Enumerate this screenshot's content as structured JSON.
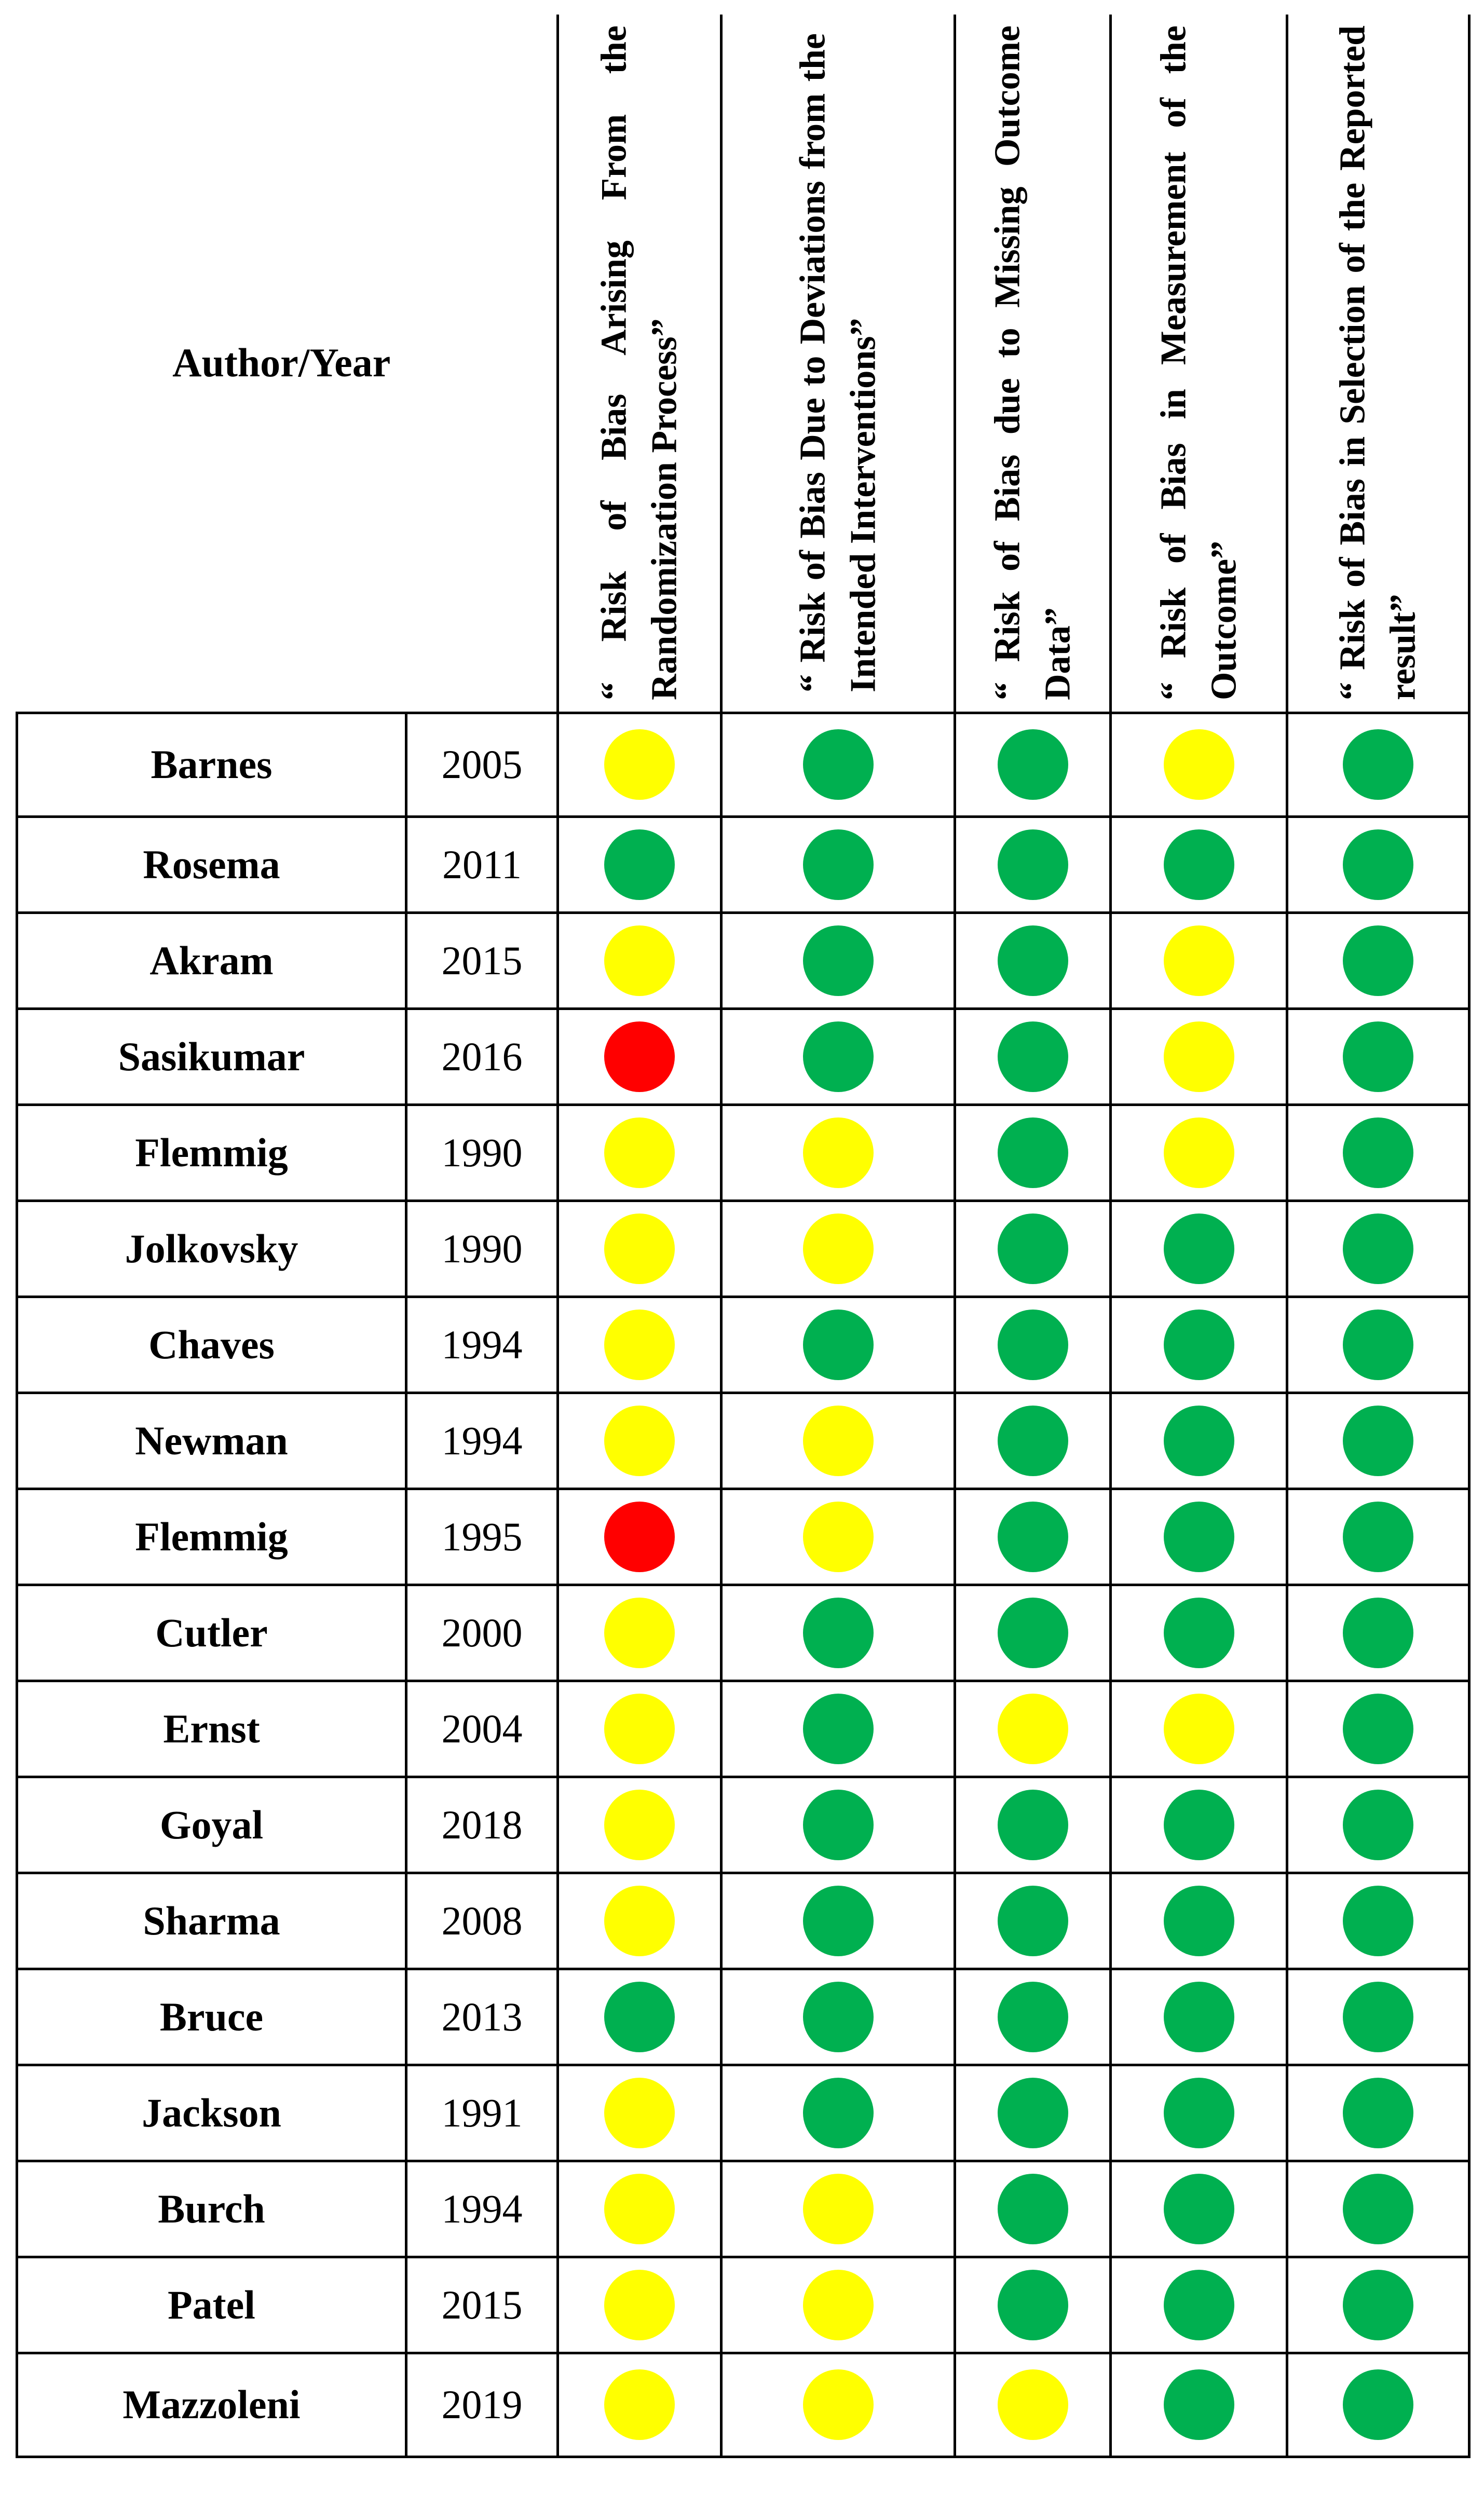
{
  "header": {
    "author_year": "Author/Year",
    "domains": [
      "“ Risk of Bias Arising From the Randomization Process”",
      "“ Risk of Bias Due to Deviations from the Intended Interventions”",
      "“ Risk of Bias due to Missing Outcome Data”",
      "“ Risk of Bias in Measurement of the Outcome”",
      "“ Risk of Bias in Selection of the Reported result”"
    ],
    "domain_2_lines": [
      "“ Risk of Bias Due to Deviations",
      "from the Intended Interven-",
      "tions”"
    ]
  },
  "legend_colors": {
    "low": "#00b050",
    "some": "#ffff00",
    "high": "#ff0000"
  },
  "rows": [
    {
      "author": "Barnes",
      "year": "2005",
      "ratings": [
        "some",
        "low",
        "low",
        "some",
        "low"
      ]
    },
    {
      "author": "Rosema",
      "year": "2011",
      "ratings": [
        "low",
        "low",
        "low",
        "low",
        "low"
      ]
    },
    {
      "author": "Akram",
      "year": "2015",
      "ratings": [
        "some",
        "low",
        "low",
        "some",
        "low"
      ]
    },
    {
      "author": "Sasikumar",
      "year": "2016",
      "ratings": [
        "high",
        "low",
        "low",
        "some",
        "low"
      ]
    },
    {
      "author": "Flemmig",
      "year": "1990",
      "ratings": [
        "some",
        "some",
        "low",
        "some",
        "low"
      ]
    },
    {
      "author": "Jolkovsky",
      "year": "1990",
      "ratings": [
        "some",
        "some",
        "low",
        "low",
        "low"
      ]
    },
    {
      "author": "Chaves",
      "year": "1994",
      "ratings": [
        "some",
        "low",
        "low",
        "low",
        "low"
      ]
    },
    {
      "author": "Newman",
      "year": "1994",
      "ratings": [
        "some",
        "some",
        "low",
        "low",
        "low"
      ]
    },
    {
      "author": "Flemmig",
      "year": "1995",
      "ratings": [
        "high",
        "some",
        "low",
        "low",
        "low"
      ]
    },
    {
      "author": "Cutler",
      "year": "2000",
      "ratings": [
        "some",
        "low",
        "low",
        "low",
        "low"
      ]
    },
    {
      "author": "Ernst",
      "year": "2004",
      "ratings": [
        "some",
        "low",
        "some",
        "some",
        "low"
      ]
    },
    {
      "author": "Goyal",
      "year": "2018",
      "ratings": [
        "some",
        "low",
        "low",
        "low",
        "low"
      ]
    },
    {
      "author": "Sharma",
      "year": "2008",
      "ratings": [
        "some",
        "low",
        "low",
        "low",
        "low"
      ]
    },
    {
      "author": "Bruce",
      "year": "2013",
      "ratings": [
        "low",
        "low",
        "low",
        "low",
        "low"
      ]
    },
    {
      "author": "Jackson",
      "year": "1991",
      "ratings": [
        "some",
        "low",
        "low",
        "low",
        "low"
      ]
    },
    {
      "author": "Burch",
      "year": "1994",
      "ratings": [
        "some",
        "some",
        "low",
        "low",
        "low"
      ]
    },
    {
      "author": "Patel",
      "year": "2015",
      "ratings": [
        "some",
        "some",
        "low",
        "low",
        "low"
      ]
    },
    {
      "author": "Mazzoleni",
      "year": "2019",
      "ratings": [
        "some",
        "some",
        "some",
        "low",
        "low"
      ]
    }
  ]
}
